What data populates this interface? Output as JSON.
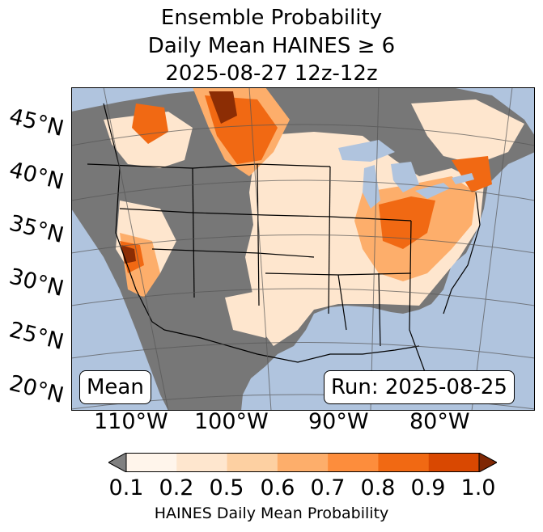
{
  "title": {
    "line1": "Ensemble Probability",
    "line2": "Daily Mean HAINES ≥ 6",
    "line3": "2025-08-27 12z-12z"
  },
  "map": {
    "stat_label": "Mean",
    "run_label": "Run: 2025-08-25",
    "lat_labels": [
      "45°N",
      "40°N",
      "35°N",
      "30°N",
      "25°N",
      "20°N"
    ],
    "lon_labels": [
      "110°W",
      "100°W",
      "90°W",
      "80°W"
    ]
  },
  "colorbar": {
    "label": "HAINES Daily Mean Probability",
    "ticks": [
      "0.1",
      "0.2",
      "0.5",
      "0.6",
      "0.7",
      "0.8",
      "0.9",
      "1.0"
    ],
    "colors": [
      "#fff5eb",
      "#fee6ce",
      "#fdd0a2",
      "#fdae6b",
      "#fd8d3c",
      "#f16913",
      "#d94801",
      "#8c2d04"
    ],
    "under_color": "#808080",
    "over_color": "#7f2704"
  },
  "colors": {
    "ocean": "#b0c4de",
    "no_data": "#777777"
  }
}
